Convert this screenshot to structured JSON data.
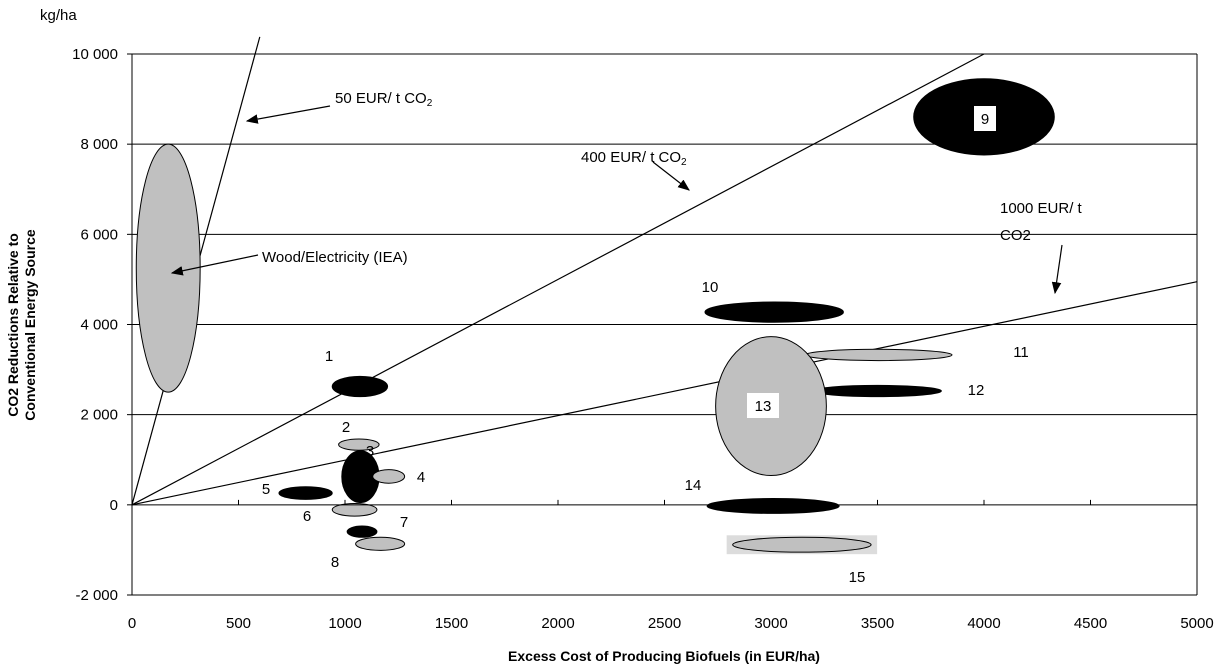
{
  "chart_data": {
    "type": "scatter",
    "unit_label": "kg/ha",
    "xlabel": "Excess Cost of Producing Biofuels (in EUR/ha)",
    "ylabel_lines": [
      "CO2 Reductions Relative to",
      "Conventional Energy Source"
    ],
    "xlim": [
      0,
      5000
    ],
    "ylim": [
      -2000,
      10000
    ],
    "x_ticks": [
      0,
      500,
      1000,
      1500,
      2000,
      2500,
      3000,
      3500,
      4000,
      4500,
      5000
    ],
    "x_tick_labels": [
      "0",
      "500",
      "1000",
      "1500",
      "2000",
      "2500",
      "3000",
      "3500",
      "4000",
      "4500",
      "5000"
    ],
    "y_ticks": [
      -2000,
      0,
      2000,
      4000,
      6000,
      8000,
      10000
    ],
    "y_tick_labels": [
      "-2 000",
      "0",
      "2 000",
      "4 000",
      "6 000",
      "8 000",
      "10 000"
    ],
    "grid": "horizontal",
    "reference_lines": [
      {
        "label": "50 EUR/ t CO",
        "sub": "2",
        "slope": 17.3,
        "x_end": 600
      },
      {
        "label": "400 EUR/ t CO",
        "sub": "2",
        "slope": 2.5,
        "x_end": 4000
      },
      {
        "label_lines": [
          "1000 EUR/ t",
          "CO2"
        ],
        "slope": 0.99,
        "x_end": 5000
      }
    ],
    "regions": [
      {
        "label": "Wood/Electricity (IEA)",
        "fill": "#c0c0c0",
        "x_min": 20,
        "x_max": 320,
        "y_min": 2500,
        "y_max": 8000
      },
      {
        "label": "1",
        "fill": "#000000",
        "x_min": 940,
        "x_max": 1200,
        "y_min": 2400,
        "y_max": 2850
      },
      {
        "label": "2",
        "fill": "#c0c0c0",
        "x_min": 970,
        "x_max": 1160,
        "y_min": 1210,
        "y_max": 1460
      },
      {
        "label": "3",
        "fill": "#000000",
        "x_min": 985,
        "x_max": 1160,
        "y_min": 50,
        "y_max": 1200
      },
      {
        "label": "4",
        "fill": "#c0c0c0",
        "x_min": 1130,
        "x_max": 1280,
        "y_min": 480,
        "y_max": 780
      },
      {
        "label": "5",
        "fill": "#000000",
        "x_min": 690,
        "x_max": 940,
        "y_min": 120,
        "y_max": 400
      },
      {
        "label": "6",
        "fill": "#c0c0c0",
        "x_min": 940,
        "x_max": 1150,
        "y_min": -250,
        "y_max": 30
      },
      {
        "label": "7",
        "fill": "#000000",
        "x_min": 1010,
        "x_max": 1150,
        "y_min": -720,
        "y_max": -470
      },
      {
        "label": "8",
        "fill": "#c0c0c0",
        "x_min": 1050,
        "x_max": 1280,
        "y_min": -1010,
        "y_max": -720
      },
      {
        "label": "9",
        "fill": "#000000",
        "x_min": 3670,
        "x_max": 4330,
        "y_min": 7760,
        "y_max": 9450
      },
      {
        "label": "10",
        "fill": "#000000",
        "x_min": 2690,
        "x_max": 3340,
        "y_min": 4050,
        "y_max": 4500
      },
      {
        "label": "11",
        "fill": "#c0c0c0",
        "x_min": 3160,
        "x_max": 3850,
        "y_min": 3200,
        "y_max": 3450
      },
      {
        "label": "12",
        "fill": "#000000",
        "x_min": 3200,
        "x_max": 3800,
        "y_min": 2400,
        "y_max": 2650
      },
      {
        "label": "13",
        "fill": "#c0c0c0",
        "x_min": 2740,
        "x_max": 3260,
        "y_min": 650,
        "y_max": 3730
      },
      {
        "label": "14",
        "fill": "#000000",
        "x_min": 2700,
        "x_max": 3320,
        "y_min": -190,
        "y_max": 140
      },
      {
        "label": "15",
        "fill": "#c0c0c0",
        "x_min": 2820,
        "x_max": 3470,
        "y_min": -1050,
        "y_max": -720
      }
    ]
  }
}
